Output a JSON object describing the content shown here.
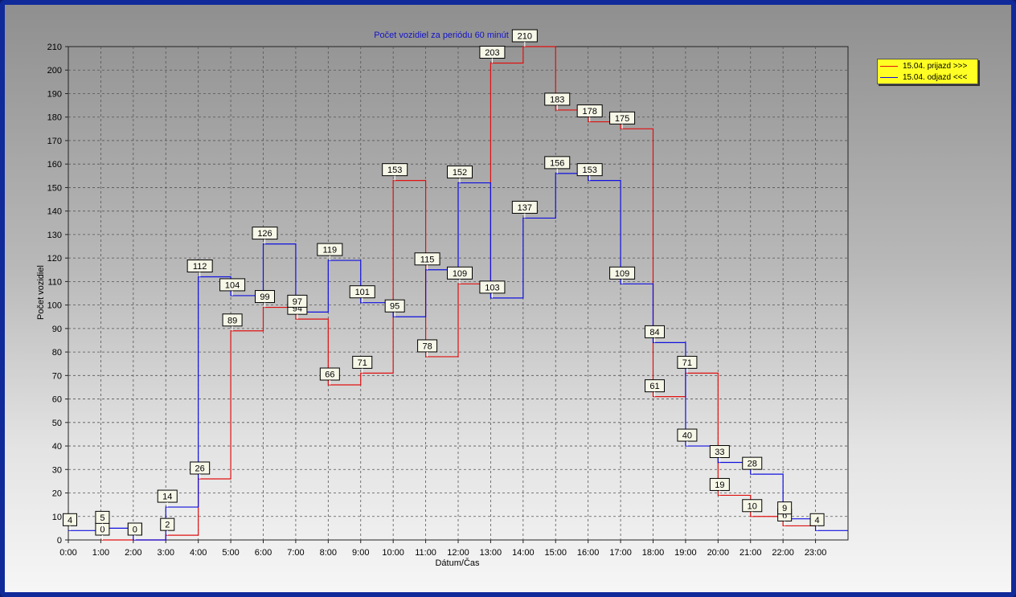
{
  "chart_data": {
    "type": "line",
    "step": true,
    "title": "Počet vozidiel za periódu 60 minút",
    "xlabel": "Dátum/Čas",
    "ylabel": "Počet vozidiel",
    "ylim": [
      0,
      210
    ],
    "yticks": [
      0,
      10,
      20,
      30,
      40,
      50,
      60,
      70,
      80,
      90,
      100,
      110,
      120,
      130,
      140,
      150,
      160,
      170,
      180,
      190,
      200,
      210
    ],
    "categories": [
      "0:00",
      "1:00",
      "2:00",
      "3:00",
      "4:00",
      "5:00",
      "6:00",
      "7:00",
      "8:00",
      "9:00",
      "10:00",
      "11:00",
      "12:00",
      "13:00",
      "14:00",
      "15:00",
      "16:00",
      "17:00",
      "18:00",
      "19:00",
      "20:00",
      "21:00",
      "22:00",
      "23:00"
    ],
    "grid": true,
    "legend_position": "top-right",
    "series": [
      {
        "name": "15.04. prijazd >>>",
        "color": "#e01010",
        "values": [
          null,
          0,
          0,
          2,
          26,
          89,
          99,
          94,
          66,
          71,
          153,
          78,
          109,
          203,
          210,
          183,
          178,
          175,
          61,
          71,
          19,
          10,
          6,
          null
        ]
      },
      {
        "name": "15.04. odjazd <<<",
        "color": "#1010e0",
        "values": [
          4,
          5,
          0,
          14,
          112,
          104,
          126,
          97,
          119,
          101,
          95,
          115,
          152,
          103,
          137,
          156,
          153,
          109,
          84,
          40,
          33,
          28,
          9,
          4
        ]
      }
    ]
  }
}
